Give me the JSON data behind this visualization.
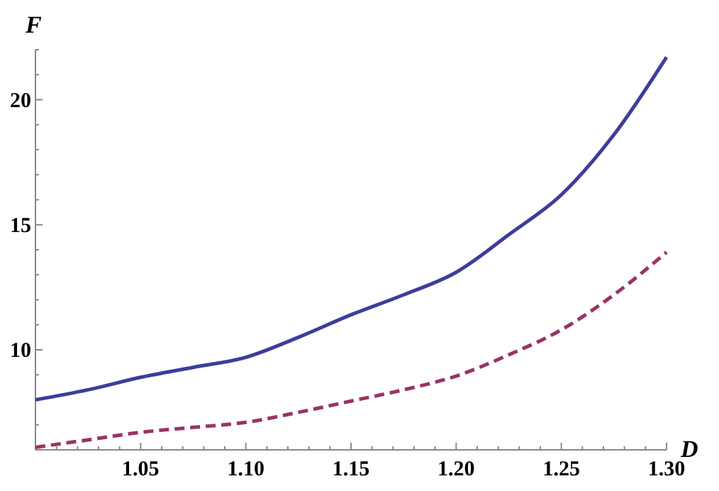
{
  "chart_data": {
    "type": "line",
    "xlabel": "D",
    "ylabel": "F",
    "xlim": [
      1.0,
      1.3
    ],
    "ylim": [
      6,
      22
    ],
    "xticks": [
      {
        "value": 1.01,
        "label": null
      },
      {
        "value": 1.02,
        "label": null
      },
      {
        "value": 1.03,
        "label": null
      },
      {
        "value": 1.04,
        "label": null
      },
      {
        "value": 1.05,
        "label": "1.05"
      },
      {
        "value": 1.06,
        "label": null
      },
      {
        "value": 1.07,
        "label": null
      },
      {
        "value": 1.08,
        "label": null
      },
      {
        "value": 1.09,
        "label": null
      },
      {
        "value": 1.1,
        "label": "1.10"
      },
      {
        "value": 1.11,
        "label": null
      },
      {
        "value": 1.12,
        "label": null
      },
      {
        "value": 1.13,
        "label": null
      },
      {
        "value": 1.14,
        "label": null
      },
      {
        "value": 1.15,
        "label": "1.15"
      },
      {
        "value": 1.16,
        "label": null
      },
      {
        "value": 1.17,
        "label": null
      },
      {
        "value": 1.18,
        "label": null
      },
      {
        "value": 1.19,
        "label": null
      },
      {
        "value": 1.2,
        "label": "1.20"
      },
      {
        "value": 1.21,
        "label": null
      },
      {
        "value": 1.22,
        "label": null
      },
      {
        "value": 1.23,
        "label": null
      },
      {
        "value": 1.24,
        "label": null
      },
      {
        "value": 1.25,
        "label": "1.25"
      },
      {
        "value": 1.26,
        "label": null
      },
      {
        "value": 1.27,
        "label": null
      },
      {
        "value": 1.28,
        "label": null
      },
      {
        "value": 1.29,
        "label": null
      },
      {
        "value": 1.3,
        "label": "1.30"
      }
    ],
    "yticks": [
      {
        "value": 7,
        "label": null
      },
      {
        "value": 8,
        "label": null
      },
      {
        "value": 9,
        "label": null
      },
      10,
      {
        "value": 11,
        "label": null
      },
      {
        "value": 12,
        "label": null
      },
      {
        "value": 13,
        "label": null
      },
      {
        "value": 14,
        "label": null
      },
      15,
      {
        "value": 16,
        "label": null
      },
      {
        "value": 17,
        "label": null
      },
      {
        "value": 18,
        "label": null
      },
      {
        "value": 19,
        "label": null
      },
      20,
      {
        "value": 21,
        "label": null
      },
      {
        "value": 22,
        "label": null
      }
    ],
    "x": [
      1.0,
      1.025,
      1.05,
      1.075,
      1.1,
      1.125,
      1.15,
      1.175,
      1.2,
      1.225,
      1.25,
      1.275,
      1.3
    ],
    "series": [
      {
        "color": "#3d3d9c",
        "line_style": "solid",
        "values": [
          8.0,
          8.4,
          8.9,
          9.3,
          9.7,
          10.5,
          11.4,
          12.2,
          13.1,
          14.6,
          16.2,
          18.6,
          21.7
        ]
      },
      {
        "color": "#993366",
        "line_style": "dashed",
        "values": [
          6.1,
          6.4,
          6.7,
          6.9,
          7.1,
          7.5,
          7.95,
          8.4,
          8.95,
          9.8,
          10.8,
          12.2,
          13.9
        ]
      }
    ]
  }
}
